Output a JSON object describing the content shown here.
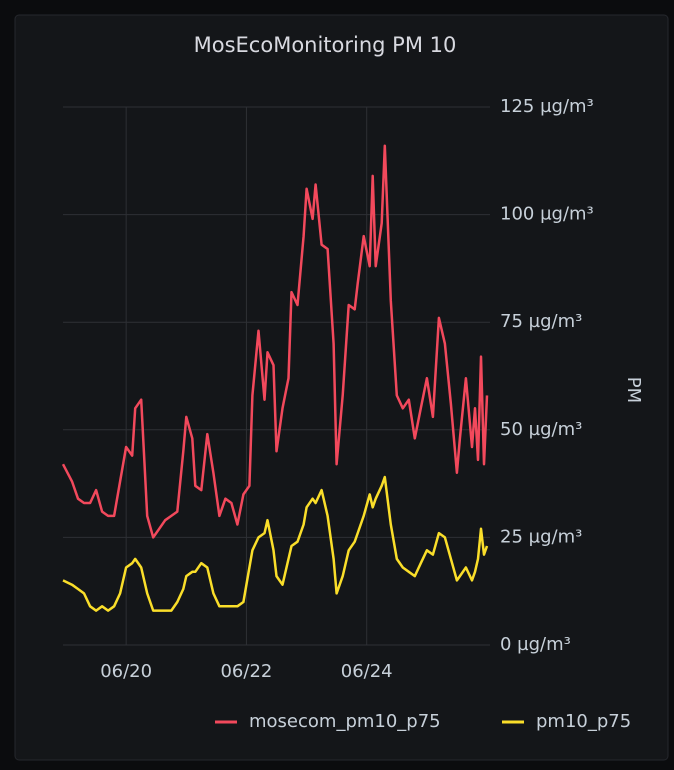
{
  "chart_data": {
    "type": "line",
    "title": "MosEcoMonitoring PM 10",
    "y_label": "PM",
    "x": [
      18.95,
      19.1,
      19.2,
      19.3,
      19.4,
      19.5,
      19.6,
      19.7,
      19.8,
      19.9,
      20.0,
      20.1,
      20.15,
      20.25,
      20.35,
      20.45,
      20.55,
      20.65,
      20.75,
      20.85,
      20.95,
      21.0,
      21.1,
      21.15,
      21.25,
      21.35,
      21.45,
      21.55,
      21.65,
      21.75,
      21.85,
      21.95,
      22.05,
      22.1,
      22.2,
      22.3,
      22.35,
      22.45,
      22.5,
      22.6,
      22.7,
      22.75,
      22.85,
      22.95,
      23.0,
      23.1,
      23.15,
      23.25,
      23.35,
      23.45,
      23.5,
      23.6,
      23.7,
      23.8,
      23.85,
      23.95,
      24.05,
      24.1,
      24.15,
      24.25,
      24.3,
      24.4,
      24.5,
      24.6,
      24.7,
      24.8,
      24.9,
      25.0,
      25.1,
      25.2,
      25.3,
      25.4,
      25.5,
      25.55,
      25.65,
      25.75,
      25.8,
      25.85,
      25.9,
      25.95,
      26.0
    ],
    "series": [
      {
        "name": "mosecom_pm10_p75",
        "color": "#f2495c",
        "values": [
          42,
          38,
          34,
          33,
          33,
          36,
          31,
          30,
          30,
          38,
          46,
          44,
          55,
          57,
          30,
          25,
          27,
          29,
          30,
          31,
          45,
          53,
          48,
          37,
          36,
          49,
          40,
          30,
          34,
          33,
          28,
          35,
          37,
          58,
          73,
          57,
          68,
          65,
          45,
          55,
          62,
          82,
          79,
          95,
          106,
          99,
          107,
          93,
          92,
          70,
          42,
          58,
          79,
          78,
          84,
          95,
          88,
          109,
          88,
          98,
          116,
          80,
          58,
          55,
          57,
          48,
          55,
          62,
          53,
          76,
          70,
          56,
          40,
          48,
          62,
          46,
          55,
          43,
          67,
          42,
          58
        ]
      },
      {
        "name": "pm10_p75",
        "color": "#fade2a",
        "values": [
          15,
          14,
          13,
          12,
          9,
          8,
          9,
          8,
          9,
          12,
          18,
          19,
          20,
          18,
          12,
          8,
          8,
          8,
          8,
          10,
          13,
          16,
          17,
          17,
          19,
          18,
          12,
          9,
          9,
          9,
          9,
          10,
          18,
          22,
          25,
          26,
          29,
          22,
          16,
          14,
          20,
          23,
          24,
          28,
          32,
          34,
          33,
          36,
          30,
          20,
          12,
          16,
          22,
          24,
          26,
          30,
          35,
          32,
          34,
          37,
          39,
          28,
          20,
          18,
          17,
          16,
          19,
          22,
          21,
          26,
          25,
          20,
          15,
          16,
          18,
          15,
          17,
          20,
          27,
          21,
          23
        ]
      }
    ],
    "xlim": [
      18.95,
      26.05
    ],
    "xticks": [
      {
        "value": 20,
        "label": "06/20"
      },
      {
        "value": 22,
        "label": "06/22"
      },
      {
        "value": 24,
        "label": "06/24"
      }
    ],
    "ylim": [
      0,
      125
    ],
    "yticks": [
      {
        "value": 0,
        "label": "0 µg/m³"
      },
      {
        "value": 25,
        "label": "25 µg/m³"
      },
      {
        "value": 50,
        "label": "50 µg/m³"
      },
      {
        "value": 75,
        "label": "75 µg/m³"
      },
      {
        "value": 100,
        "label": "100 µg/m³"
      },
      {
        "value": 125,
        "label": "125 µg/m³"
      }
    ],
    "grid": true
  }
}
